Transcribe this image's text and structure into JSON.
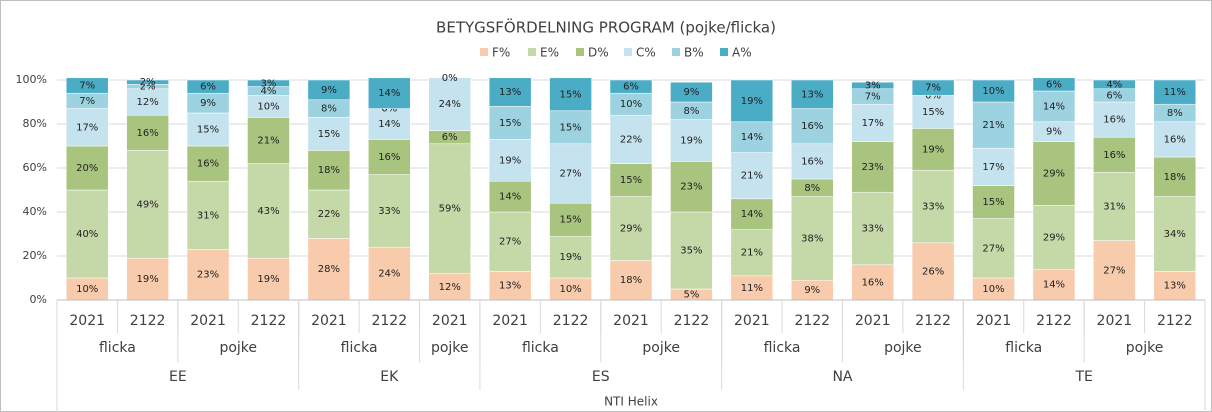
{
  "chart_data": {
    "type": "stacked_bar",
    "title": "BETYGSFÖRDELNING PROGRAM (pojke/flicka)",
    "categories": [
      "2021",
      "2122",
      "2021",
      "2122",
      "2021",
      "2122",
      "2021",
      "2021",
      "2122",
      "2021",
      "2122",
      "2021",
      "2122",
      "2021",
      "2122",
      "2021",
      "2122",
      "2021",
      "2122"
    ],
    "genders": [
      "flicka",
      "flicka",
      "pojke",
      "pojke",
      "flicka",
      "flicka",
      "pojke",
      "flicka",
      "flicka",
      "pojke",
      "pojke",
      "flicka",
      "flicka",
      "pojke",
      "pojke",
      "flicka",
      "flicka",
      "pojke",
      "pojke"
    ],
    "programs": [
      "EE",
      "EE",
      "EE",
      "EE",
      "EK",
      "EK",
      "EK",
      "ES",
      "ES",
      "ES",
      "ES",
      "NA",
      "NA",
      "NA",
      "NA",
      "TE",
      "TE",
      "TE",
      "TE"
    ],
    "school": "NTI Helix",
    "series": [
      {
        "name": "F%",
        "color": "#f8cbad",
        "values": [
          10,
          19,
          23,
          19,
          28,
          24,
          12,
          13,
          10,
          18,
          5,
          11,
          9,
          16,
          26,
          10,
          14,
          27,
          13
        ],
        "value_labels": [
          "10%",
          "19%",
          "23%",
          "19%",
          "28%",
          "24%",
          "12%",
          "13%",
          "10%",
          "18%",
          "5%",
          "11%",
          "9%",
          "16%",
          "26%",
          "10%",
          "14%",
          "27%",
          "13%"
        ]
      },
      {
        "name": "E%",
        "color": "#c5d8a8",
        "values": [
          40,
          49,
          31,
          43,
          22,
          33,
          59,
          27,
          19,
          29,
          35,
          21,
          38,
          33,
          33,
          27,
          29,
          31,
          34
        ],
        "value_labels": [
          "40%",
          "49%",
          "31%",
          "43%",
          "22%",
          "33%",
          "59%",
          "27%",
          "19%",
          "29%",
          "35%",
          "21%",
          "38%",
          "33%",
          "33%",
          "27%",
          "29%",
          "31%",
          "34%"
        ]
      },
      {
        "name": "D%",
        "color": "#a9c47f",
        "values": [
          20,
          16,
          16,
          21,
          18,
          16,
          6,
          14,
          15,
          15,
          23,
          14,
          8,
          23,
          19,
          15,
          29,
          16,
          18
        ],
        "value_labels": [
          "20%",
          "16%",
          "16%",
          "21%",
          "18%",
          "16%",
          "6%",
          "14%",
          "15%",
          "15%",
          "23%",
          "14%",
          "8%",
          "23%",
          "19%",
          "15%",
          "29%",
          "16%",
          "18%"
        ]
      },
      {
        "name": "C%",
        "color": "#c5e3ee",
        "values": [
          17,
          12,
          15,
          10,
          15,
          14,
          24,
          19,
          27,
          22,
          19,
          21,
          16,
          17,
          15,
          17,
          9,
          16,
          16
        ],
        "value_labels": [
          "17%",
          "12%",
          "15%",
          "10%",
          "15%",
          "14%",
          "24%",
          "19%",
          "27%",
          "22%",
          "19%",
          "21%",
          "16%",
          "17%",
          "15%",
          "17%",
          "9%",
          "16%",
          "16%"
        ]
      },
      {
        "name": "B%",
        "color": "#9dd2e0",
        "values": [
          7,
          2,
          9,
          4,
          8,
          0,
          null,
          15,
          15,
          10,
          8,
          14,
          16,
          7,
          0,
          21,
          14,
          6,
          8
        ],
        "value_labels": [
          "7%",
          "2%",
          "9%",
          "4%",
          "8%",
          "0%",
          null,
          "15%",
          "15%",
          "10%",
          "8%",
          "14%",
          "16%",
          "7%",
          "0%",
          "21%",
          "14%",
          "6%",
          "8%"
        ]
      },
      {
        "name": "A%",
        "color": "#4bacc6",
        "values": [
          7,
          2,
          6,
          3,
          9,
          14,
          0,
          13,
          15,
          6,
          9,
          19,
          13,
          3,
          7,
          10,
          6,
          4,
          11
        ],
        "value_labels": [
          "7%",
          "2%",
          "6%",
          "3%",
          "9%",
          "14%",
          "0%",
          "13%",
          "15%",
          "6%",
          "9%",
          "19%",
          "13%",
          "3%",
          "7%",
          "10%",
          "6%",
          "4%",
          "11%"
        ]
      }
    ],
    "ylim": [
      0,
      100
    ],
    "yticks": [
      {
        "value": 0,
        "label": "0%"
      },
      {
        "value": 20,
        "label": "20%"
      },
      {
        "value": 40,
        "label": "40%"
      },
      {
        "value": 60,
        "label": "60%"
      },
      {
        "value": 80,
        "label": "80%"
      },
      {
        "value": 100,
        "label": "100%"
      }
    ],
    "grid": true,
    "legend": "top"
  }
}
